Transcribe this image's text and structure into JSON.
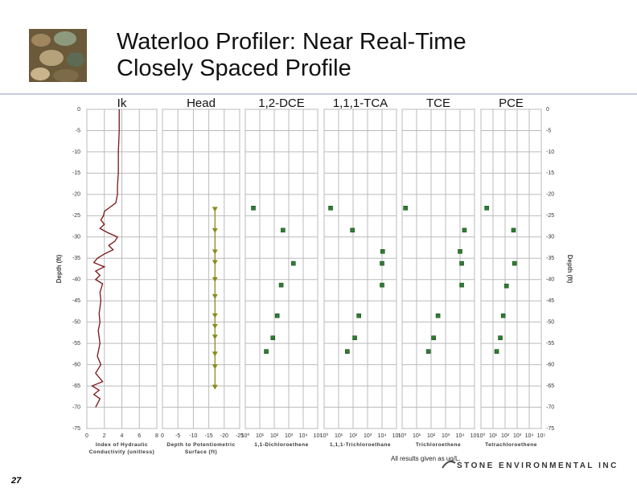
{
  "slide": {
    "title": "Waterloo Profiler: Near Real-Time Closely Spaced Profile",
    "page_number": "27",
    "note": "All results given as ug/L.",
    "logo": "STONE ENVIRONMENTAL INC"
  },
  "chart_data": [
    {
      "type": "line",
      "title": "Ik",
      "xlabel": "Index of Hydraulic Conductivity (unitless)",
      "ylabel": "Depth (ft)",
      "color": "#7a1414",
      "xlim": [
        0,
        8
      ],
      "xticks": [
        0,
        2,
        4,
        6,
        8
      ],
      "ylim": [
        -75,
        0
      ],
      "yticks": [
        0,
        -5,
        -10,
        -15,
        -20,
        -25,
        -30,
        -35,
        -40,
        -45,
        -50,
        -55,
        -60,
        -65,
        -70,
        -75
      ],
      "x": [
        3.7,
        3.7,
        3.6,
        3.6,
        3.5,
        3.5,
        3.3,
        2.0,
        1.9,
        1.6,
        2.0,
        1.5,
        2.4,
        3.5,
        3.2,
        2.5,
        3.0,
        2.0,
        1.2,
        0.8,
        2.0,
        1.0,
        1.5,
        1.0,
        1.8,
        1.5,
        1.6,
        1.4,
        1.5,
        1.3,
        1.5,
        1.2,
        1.6,
        1.0,
        1.8,
        0.6,
        1.4,
        0.8,
        1.5,
        1.0
      ],
      "y": [
        0,
        -5,
        -10,
        -15,
        -18,
        -20,
        -22,
        -24,
        -25,
        -26,
        -27,
        -28,
        -29,
        -30,
        -31,
        -32,
        -33,
        -34,
        -35,
        -36,
        -37,
        -38,
        -39,
        -40,
        -41,
        -43,
        -45,
        -48,
        -50,
        -52,
        -55,
        -58,
        -60,
        -62,
        -64,
        -65,
        -66,
        -67,
        -68,
        -70
      ]
    },
    {
      "type": "line",
      "marker": "triangle",
      "title": "Head",
      "xlabel": "Depth to Potentiometric Surface (ft)",
      "color": "#8a8a1e",
      "xlim": [
        0,
        -25
      ],
      "xticks": [
        0,
        -5,
        -10,
        -15,
        -20,
        -25
      ],
      "ylim": [
        -75,
        0
      ],
      "yticks": [
        0,
        -5,
        -10,
        -15,
        -20,
        -25,
        -30,
        -35,
        -40,
        -45,
        -50,
        -55,
        -60,
        -65,
        -70,
        -75
      ],
      "x": [
        -17,
        -17,
        -17,
        -17,
        -17,
        -17,
        -17,
        -17,
        -17,
        -17,
        -17,
        -17
      ],
      "y": [
        -23.5,
        -28.5,
        -33.5,
        -36,
        -40,
        -44,
        -48.5,
        -51,
        -53.5,
        -57.5,
        -60.5,
        -65.3
      ]
    },
    {
      "type": "scatter",
      "title": "1,2-DCE",
      "xlabel": "1,1-Dichloroethene",
      "color": "#2e7d32",
      "xscale": "log",
      "xlim": [
        1,
        100000
      ],
      "xticks": [
        {
          "value": 1,
          "label": "10⁰"
        },
        {
          "value": 10,
          "label": "10¹"
        },
        {
          "value": 100,
          "label": "10²"
        },
        {
          "value": 1000,
          "label": "10³"
        },
        {
          "value": 10000,
          "label": "10⁴"
        },
        {
          "value": 100000,
          "label": "10⁵"
        }
      ],
      "ylim": [
        -75,
        0
      ],
      "yticks": [
        0,
        -5,
        -10,
        -15,
        -20,
        -25,
        -30,
        -35,
        -40,
        -45,
        -50,
        -55,
        -60,
        -65,
        -70,
        -75
      ],
      "x": [
        3.6,
        400,
        2100,
        300,
        160,
        80,
        28
      ],
      "y": [
        -23.2,
        -28.4,
        -36.2,
        -41.3,
        -48.5,
        -53.7,
        -56.9
      ]
    },
    {
      "type": "scatter",
      "title": "1,1,1-TCA",
      "xlabel": "1,1,1-Trichloroethane",
      "color": "#2e7d32",
      "xscale": "log",
      "xlim": [
        1,
        100000
      ],
      "xticks": [
        {
          "value": 1,
          "label": "10⁰"
        },
        {
          "value": 10,
          "label": "10¹"
        },
        {
          "value": 100,
          "label": "10²"
        },
        {
          "value": 1000,
          "label": "10³"
        },
        {
          "value": 10000,
          "label": "10⁴"
        },
        {
          "value": 100000,
          "label": "10⁵"
        }
      ],
      "ylim": [
        -75,
        0
      ],
      "yticks": [
        0,
        -5,
        -10,
        -15,
        -20,
        -25,
        -30,
        -35,
        -40,
        -45,
        -50,
        -55,
        -60,
        -65,
        -70,
        -75
      ],
      "x": [
        2.8,
        90,
        11000,
        10000,
        10000,
        250,
        130,
        40
      ],
      "y": [
        -23.2,
        -28.4,
        -33.4,
        -36.2,
        -41.3,
        -48.5,
        -53.7,
        -56.9
      ]
    },
    {
      "type": "scatter",
      "title": "TCE",
      "xlabel": "Trichloroethene",
      "color": "#2e7d32",
      "xscale": "log",
      "xlim": [
        1,
        100000
      ],
      "xticks": [
        {
          "value": 1,
          "label": "10⁰"
        },
        {
          "value": 10,
          "label": "10¹"
        },
        {
          "value": 100,
          "label": "10²"
        },
        {
          "value": 1000,
          "label": "10³"
        },
        {
          "value": 10000,
          "label": "10⁴"
        },
        {
          "value": 100000,
          "label": "10⁵"
        }
      ],
      "ylim": [
        -75,
        0
      ],
      "yticks": [
        0,
        -5,
        -10,
        -15,
        -20,
        -25,
        -30,
        -35,
        -40,
        -45,
        -50,
        -55,
        -60,
        -65,
        -70,
        -75
      ],
      "x": [
        1.7,
        20000,
        10000,
        13000,
        13000,
        300,
        150,
        65
      ],
      "y": [
        -23.2,
        -28.4,
        -33.4,
        -36.2,
        -41.3,
        -48.5,
        -53.7,
        -56.9
      ]
    },
    {
      "type": "scatter",
      "title": "PCE",
      "xlabel": "Tetrachloroethene",
      "ylabel": "Depth (ft)",
      "color": "#2e7d32",
      "xscale": "log",
      "xlim": [
        1,
        100000
      ],
      "xticks": [
        {
          "value": 1,
          "label": "10⁰"
        },
        {
          "value": 10,
          "label": "10¹"
        },
        {
          "value": 100,
          "label": "10²"
        },
        {
          "value": 1000,
          "label": "10³"
        },
        {
          "value": 10000,
          "label": "10⁴"
        },
        {
          "value": 100000,
          "label": "10⁵"
        }
      ],
      "ylim": [
        -75,
        0
      ],
      "yticks": [
        0,
        -5,
        -10,
        -15,
        -20,
        -25,
        -30,
        -35,
        -40,
        -45,
        -50,
        -55,
        -60,
        -65,
        -70,
        -75
      ],
      "x": [
        3,
        500,
        600,
        130,
        70,
        40,
        20
      ],
      "y": [
        -23.2,
        -28.4,
        -36.2,
        -41.5,
        -48.5,
        -53.7,
        -56.9
      ]
    }
  ]
}
